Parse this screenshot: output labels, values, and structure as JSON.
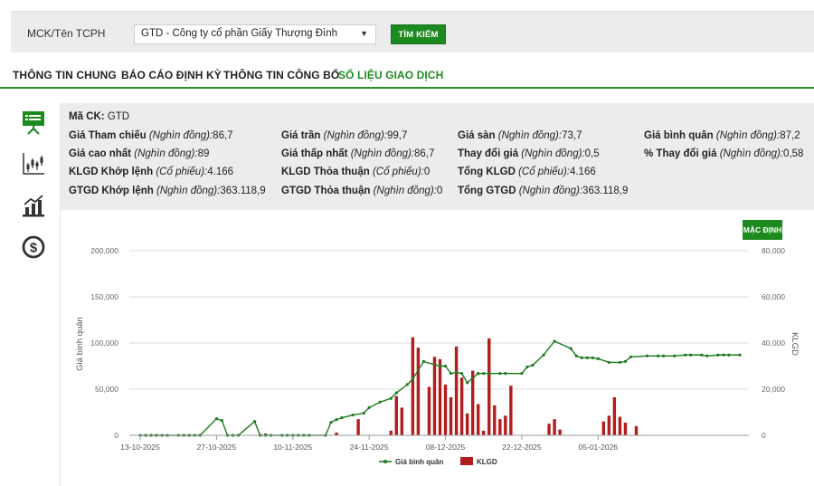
{
  "search": {
    "label": "MCK/Tên TCPH",
    "selected": "GTD - Công ty cổ phần Giấy Thượng Đình",
    "button": "TÌM KIẾM"
  },
  "tabs": [
    {
      "label": "THÔNG TIN CHUNG",
      "active": false
    },
    {
      "label": "BÁO CÁO ĐỊNH KỲ",
      "active": false
    },
    {
      "label": "THÔNG TIN CÔNG BỐ",
      "active": false
    },
    {
      "label": "SỐ LIỆU GIAO DỊCH",
      "active": true
    }
  ],
  "sidebar_icons": [
    "presentation-icon",
    "candlestick-chart-icon",
    "bar-chart-icon",
    "dollar-coin-icon"
  ],
  "info": {
    "code_label": "Mã CK:",
    "code_value": "GTD",
    "ref_label": "Giá Tham chiếu",
    "ref_unit": "(Nghìn đồng):",
    "ref_value": "86,7",
    "ceil_label": "Giá trần",
    "ceil_unit": "(Nghìn đồng):",
    "ceil_value": "99,7",
    "floor_label": "Giá sàn",
    "floor_unit": "(Nghìn đồng):",
    "floor_value": "73,7",
    "avg_label": "Giá bình quân",
    "avg_unit": "(Nghìn đồng):",
    "avg_value": "87,2",
    "high_label": "Giá cao nhất",
    "high_unit": "(Nghìn đồng):",
    "high_value": "89",
    "low_label": "Giá thấp nhất",
    "low_unit": "(Nghìn đồng):",
    "low_value": "86,7",
    "change_label": "Thay đổi giá",
    "change_unit": "(Nghìn đồng):",
    "change_value": "0,5",
    "pct_label": "% Thay đổi giá",
    "pct_unit": "(Nghìn đồng):",
    "pct_value": "0,58",
    "vol_match_label": "KLGD Khớp lệnh",
    "vol_match_unit": "(Cổ phiếu):",
    "vol_match_value": "4.166",
    "vol_deal_label": "KLGD Thỏa thuận",
    "vol_deal_unit": "(Cổ phiếu):",
    "vol_deal_value": "0",
    "vol_total_label": "Tổng KLGD",
    "vol_total_unit": "(Cổ phiếu):",
    "vol_total_value": "4.166",
    "val_match_label": "GTGD Khớp lệnh",
    "val_match_unit": "(Nghìn đồng):",
    "val_match_value": "363.118,9",
    "val_deal_label": "GTGD Thỏa thuận",
    "val_deal_unit": "(Nghìn đồng):",
    "val_deal_value": "0",
    "val_total_label": "Tổng GTGD",
    "val_total_unit": "(Nghìn đồng):",
    "val_total_value": "363.118,9"
  },
  "default_button": "MẶC ĐỊNH",
  "colors": {
    "accent": "#1d8a1f",
    "line": "#1f7a1f",
    "bar": "#b21d1d"
  },
  "chart_data": {
    "type": "bar+line",
    "x_ticks": [
      "13-10-2025",
      "27-10-2025",
      "10-11-2025",
      "24-11-2025",
      "08-12-2025",
      "22-12-2025",
      "05-01-2026"
    ],
    "ylabel": "Giá bình quân",
    "y2label": "KLGD",
    "y_ticks": [
      "200,000",
      "150,000",
      "100,000",
      "50,000",
      "0"
    ],
    "y2_ticks": [
      "80,000",
      "60,000",
      "40,000",
      "20,000",
      "0"
    ],
    "ylim": [
      0,
      200000
    ],
    "y2lim": [
      0,
      80000
    ],
    "legend": [
      "Giá bình quân",
      "KLGD"
    ],
    "legend_position": "bottom",
    "n_days": 67,
    "line_series": {
      "name": "Giá bình quân",
      "points": [
        [
          0,
          0
        ],
        [
          1,
          0
        ],
        [
          2,
          0
        ],
        [
          3,
          0
        ],
        [
          4,
          0
        ],
        [
          5,
          0
        ],
        [
          7,
          0
        ],
        [
          8,
          0
        ],
        [
          9,
          0
        ],
        [
          10,
          0
        ],
        [
          11,
          0
        ],
        [
          14,
          18000
        ],
        [
          15,
          16000
        ],
        [
          16,
          0
        ],
        [
          17,
          0
        ],
        [
          18,
          0
        ],
        [
          21,
          15000
        ],
        [
          22,
          0
        ],
        [
          23,
          0
        ],
        [
          24,
          0
        ],
        [
          26,
          0
        ],
        [
          27,
          0
        ],
        [
          28,
          0
        ],
        [
          29,
          0
        ],
        [
          30,
          0
        ],
        [
          31,
          0
        ],
        [
          34,
          0
        ],
        [
          35,
          14000
        ],
        [
          36,
          17000
        ],
        [
          37,
          19000
        ],
        [
          39,
          22000
        ],
        [
          41,
          24000
        ],
        [
          42,
          30000
        ],
        [
          44,
          36000
        ],
        [
          46,
          40000
        ],
        [
          47,
          46000
        ],
        [
          49,
          55000
        ],
        [
          50,
          61000
        ],
        [
          52,
          80000
        ],
        [
          55,
          75000
        ],
        [
          56,
          75000
        ],
        [
          57,
          67000
        ],
        [
          58,
          68000
        ],
        [
          59,
          67000
        ],
        [
          60,
          57000
        ],
        [
          62,
          67000
        ],
        [
          63,
          67000
        ],
        [
          64,
          67000
        ],
        [
          66,
          67000
        ],
        [
          67,
          67000
        ],
        [
          70,
          67000
        ],
        [
          71,
          74000
        ],
        [
          72,
          76000
        ],
        [
          74,
          87000
        ],
        [
          76,
          102000
        ],
        [
          79,
          94000
        ],
        [
          80,
          86000
        ],
        [
          81,
          84000
        ],
        [
          82,
          84000
        ],
        [
          83,
          84000
        ],
        [
          84,
          83000
        ],
        [
          86,
          79000
        ],
        [
          88,
          79000
        ],
        [
          89,
          80000
        ],
        [
          90,
          85000
        ],
        [
          93,
          86000
        ],
        [
          95,
          86000
        ],
        [
          96,
          86000
        ],
        [
          98,
          86000
        ],
        [
          100,
          87000
        ],
        [
          101,
          87000
        ],
        [
          103,
          87000
        ],
        [
          104,
          86000
        ],
        [
          106,
          87000
        ],
        [
          107,
          87000
        ],
        [
          108,
          87000
        ],
        [
          110,
          87000
        ]
      ]
    },
    "bar_series": {
      "name": "KLGD",
      "points": [
        [
          23,
          800
        ],
        [
          30,
          300
        ],
        [
          36,
          1200
        ],
        [
          40,
          7000
        ],
        [
          46,
          2000
        ],
        [
          47,
          17000
        ],
        [
          48,
          12000
        ],
        [
          50,
          42500
        ],
        [
          51,
          38000
        ],
        [
          53,
          21000
        ],
        [
          54,
          34000
        ],
        [
          55,
          33000
        ],
        [
          56,
          22000
        ],
        [
          57,
          16500
        ],
        [
          58,
          38500
        ],
        [
          59,
          25000
        ],
        [
          60,
          9500
        ],
        [
          61,
          28000
        ],
        [
          62,
          13500
        ],
        [
          63,
          2000
        ],
        [
          64,
          42000
        ],
        [
          65,
          13000
        ],
        [
          66,
          7000
        ],
        [
          67,
          8500
        ],
        [
          68,
          21500
        ],
        [
          75,
          5000
        ],
        [
          76,
          7000
        ],
        [
          77,
          2500
        ],
        [
          85,
          6000
        ],
        [
          86,
          8500
        ],
        [
          87,
          16500
        ],
        [
          88,
          8000
        ],
        [
          89,
          5500
        ],
        [
          91,
          4000
        ]
      ]
    }
  }
}
